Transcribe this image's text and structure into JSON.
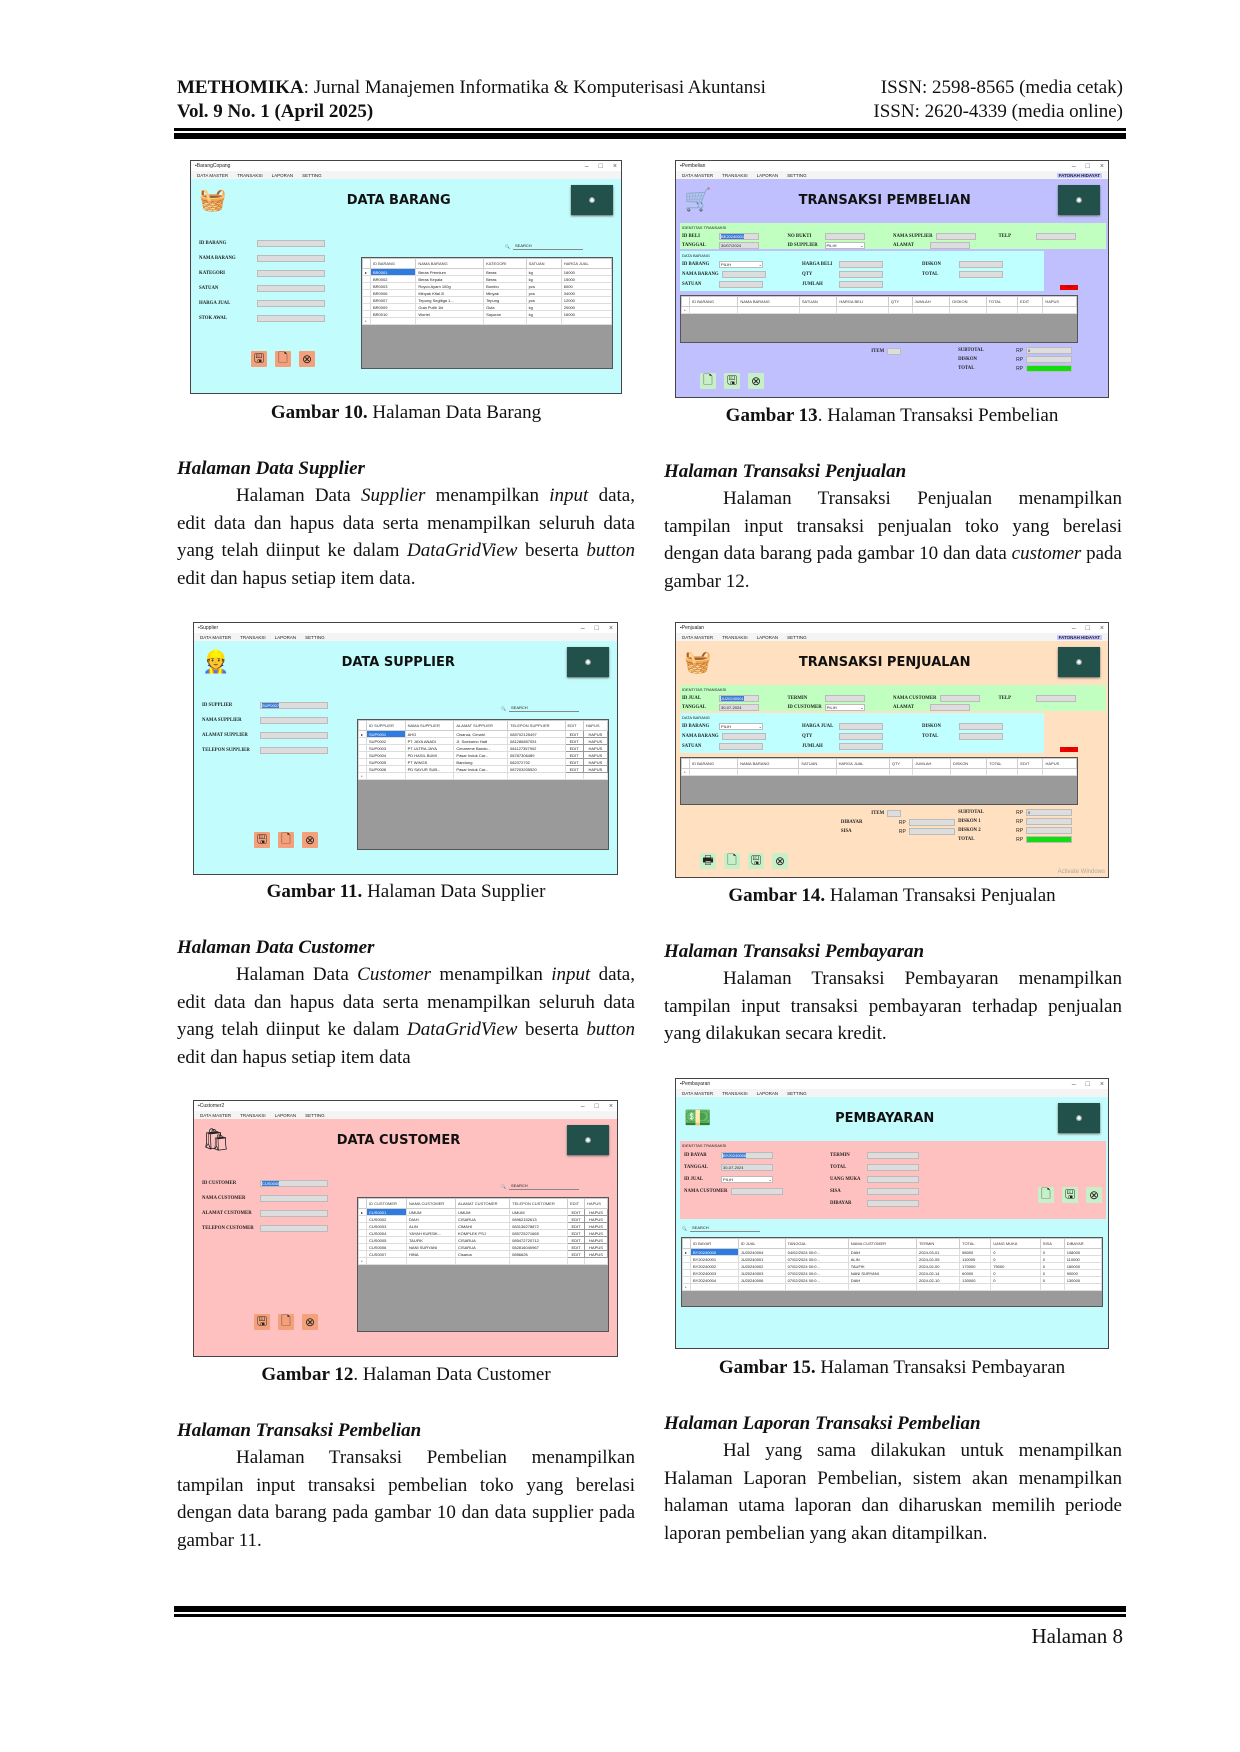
{
  "header": {
    "journal_name": "METHOMIKA",
    "journal_subtitle": ": Jurnal Manajemen Informatika & Komputerisasi Akuntansi",
    "volume": "Vol. 9 No. 1 (April 2025)",
    "issn_print": "ISSN: 2598-8565 (media cetak)",
    "issn_online": "ISSN: 2620-4339 (media online)"
  },
  "figures": [
    {
      "label": "Gambar 10.",
      "caption": " Halaman Data Barang",
      "window": {
        "title": "BarangCopang",
        "menu": [
          "DATA MASTER",
          "TRANSAKSI",
          "LAPORAN",
          "SETTING"
        ],
        "heading": "DATA BARANG",
        "bg": "#c2fcfc",
        "icon": "🧺",
        "fields": [
          {
            "label": "ID BARANG",
            "value": ""
          },
          {
            "label": "NAMA BARANG",
            "value": ""
          },
          {
            "label": "KATEGORI",
            "value": ""
          },
          {
            "label": "SATUAN",
            "value": ""
          },
          {
            "label": "HARGA JUAL",
            "value": ""
          },
          {
            "label": "STOK AWAL",
            "value": ""
          }
        ],
        "search_placeholder": "SEARCH",
        "table": {
          "columns": [
            "ID BARANG",
            "NAMA BARANG",
            "KATEGORI",
            "SATUAN",
            "HARGA JUAL"
          ],
          "rows": [
            [
              "BR0001",
              "Beras Premium",
              "Beras",
              "kg",
              "16000"
            ],
            [
              "BR0002",
              "Beras Kepala",
              "Beras",
              "kg",
              "15000"
            ],
            [
              "BR0003",
              "Royco Ayam 100g",
              "Bumbu",
              "pcs",
              "6000"
            ],
            [
              "BR0006",
              "Minyak Kital 2l",
              "Minyak",
              "pcs",
              "34000"
            ],
            [
              "BR0007",
              "Tepung Segitiga 1...",
              "Tepung",
              "pcs",
              "12000"
            ],
            [
              "BR0009",
              "Gula Putih 1kl",
              "Gula",
              "kg",
              "20000"
            ],
            [
              "BR0010",
              "Wortel",
              "Sayuran",
              "kg",
              "16000"
            ]
          ]
        },
        "button_colors": "#f4a07a"
      }
    },
    {
      "label": "Gambar 13",
      "caption": ". Halaman Transaksi Pembelian",
      "window": {
        "title": "Pembelian",
        "menu": [
          "DATA MASTER",
          "TRANSAKSI",
          "LAPORAN",
          "SETTING"
        ],
        "user": "FATONAH HIDAYAT",
        "heading": "TRANSAKSI PEMBELIAN",
        "bg": "#c0c0ff",
        "icon": "🛒",
        "group1_title": "IDENTITAS TRANSAKSI",
        "group1": [
          {
            "label": "ID BELI",
            "value": "BE20240001",
            "selected": true
          },
          {
            "label": "TANGGAL",
            "value": "30/07/2024"
          },
          {
            "label": "NO BUKTI",
            "value": ""
          },
          {
            "label": "ID SUPPLIER",
            "value": "PILIH",
            "combo": true
          },
          {
            "label": "NAMA SUPPLIER",
            "value": ""
          },
          {
            "label": "ALAMAT",
            "value": ""
          },
          {
            "label": "TELP",
            "value": ""
          }
        ],
        "group2_title": "DATA BARANG",
        "group2": [
          {
            "label": "ID BARANG",
            "value": "PILIH",
            "combo": true
          },
          {
            "label": "NAMA BARANG",
            "value": ""
          },
          {
            "label": "SATUAN",
            "value": ""
          },
          {
            "label": "HARGA BELI",
            "value": ""
          },
          {
            "label": "QTY",
            "value": ""
          },
          {
            "label": "JUMLAH",
            "value": ""
          },
          {
            "label": "DISKON",
            "value": ""
          },
          {
            "label": "TOTAL",
            "value": ""
          }
        ],
        "add_label": "ADD",
        "table": {
          "columns": [
            "ID BARANG",
            "NAMA BARANG",
            "SATUAN",
            "HARGA BELI",
            "QTY",
            "JUMLAH",
            "DISKON",
            "TOTAL",
            "EDIT",
            "HAPUS"
          ],
          "rows": []
        },
        "item_label": "ITEM",
        "totals": [
          {
            "label": "SUBTOTAL",
            "currency": "RP",
            "value": "0"
          },
          {
            "label": "DISKON",
            "currency": "RP",
            "value": ""
          },
          {
            "label": "TOTAL",
            "currency": "RP",
            "value": "",
            "green": true
          }
        ],
        "button_colors": "#c8f0c8"
      }
    },
    {
      "label": "Gambar 11.",
      "caption": " Halaman Data Supplier",
      "window": {
        "title": "Supplier",
        "menu": [
          "DATA MASTER",
          "TRANSAKSI",
          "LAPORAN",
          "SETTING"
        ],
        "heading": "DATA SUPPLIER",
        "bg": "#c2fcfc",
        "icon": "👷",
        "fields": [
          {
            "label": "ID SUPPLIER",
            "value": "SUP0007",
            "selected": true
          },
          {
            "label": "NAMA SUPPLIER",
            "value": ""
          },
          {
            "label": "ALAMAT SUPPLIER",
            "value": ""
          },
          {
            "label": "TELEPON SUPPLIER",
            "value": ""
          }
        ],
        "search_placeholder": "SEARCH",
        "table": {
          "columns": [
            "ID SUPPLIER",
            "NAMA SUPPLIER",
            "ALAMAT SUPPLIER",
            "TELEPON SUPPLIER",
            "EDIT",
            "HAPUS"
          ],
          "rows": [
            [
              "SUP0001",
              "AHO",
              "Cisarua, Cimahi",
              "085702125497",
              "EDIT",
              "HAPUS"
            ],
            [
              "SUP0002",
              "PT JAYA ANADI",
              "Jl. Soekarno Hatt",
              "081286857051",
              "EDIT",
              "HAPUS"
            ],
            [
              "SUP0003",
              "PT ULTRA JAYA",
              "Cimareme Bandu...",
              "081127357902",
              "EDIT",
              "HAPUS"
            ],
            [
              "SUP0004",
              "PD HASIL BUMI",
              "Pasar Induk Car...",
              "08787306489",
              "EDIT",
              "HAPUS"
            ],
            [
              "SUP0005",
              "PT WINGS",
              "Bandung",
              "082372702",
              "EDIT",
              "HAPUS"
            ],
            [
              "SUP0006",
              "PD SAYUR SUB...",
              "Pasar Induk Car...",
              "087203205520",
              "EDIT",
              "HAPUS"
            ]
          ]
        },
        "button_colors": "#f4a07a"
      }
    },
    {
      "label": "Gambar 14.",
      "caption": " Halaman Transaksi Penjualan",
      "window": {
        "title": "Penjualan",
        "menu": [
          "DATA MASTER",
          "TRANSAKSI",
          "LAPORAN",
          "SETTING"
        ],
        "user": "FATONAH HIDAYAT",
        "heading": "TRANSAKSI PENJUALAN",
        "bg": "#ffe0c0",
        "icon": "🧺",
        "group1_title": "IDENTITAS TRANSAKSI",
        "group1": [
          {
            "label": "ID JUAL",
            "value": "JU20240001",
            "selected": true
          },
          {
            "label": "TANGGAL",
            "value": "30-07-2024"
          },
          {
            "label": "TERMIN",
            "value": ""
          },
          {
            "label": "ID CUSTOMER",
            "value": "PILIH",
            "combo": true
          },
          {
            "label": "NAMA CUSTOMER",
            "value": ""
          },
          {
            "label": "ALAMAT",
            "value": ""
          },
          {
            "label": "TELP",
            "value": ""
          }
        ],
        "group2_title": "DATA BARANG",
        "group2": [
          {
            "label": "ID BARANG",
            "value": "PILIH",
            "combo": true
          },
          {
            "label": "NAMA BARANG",
            "value": ""
          },
          {
            "label": "SATUAN",
            "value": ""
          },
          {
            "label": "HARGA JUAL",
            "value": ""
          },
          {
            "label": "QTY",
            "value": ""
          },
          {
            "label": "JUMLAH",
            "value": ""
          },
          {
            "label": "DISKON",
            "value": ""
          },
          {
            "label": "TOTAL",
            "value": ""
          }
        ],
        "add_label": "ADD",
        "table": {
          "columns": [
            "ID BARANG",
            "NAMA BARANG",
            "SATUAN",
            "HARGA JUAL",
            "QTY",
            "JUMLAH",
            "DISKON",
            "TOTAL",
            "EDIT",
            "HAPUS"
          ],
          "rows": []
        },
        "item_label": "ITEM",
        "pay": [
          {
            "label": "DIBAYAR",
            "currency": "RP",
            "value": ""
          },
          {
            "label": "SISA",
            "currency": "RP",
            "value": ""
          }
        ],
        "totals": [
          {
            "label": "SUBTOTAL",
            "currency": "RP",
            "value": "0"
          },
          {
            "label": "DISKON 1",
            "currency": "RP",
            "value": ""
          },
          {
            "label": "DISKON 2",
            "currency": "RP",
            "value": ""
          },
          {
            "label": "TOTAL",
            "currency": "RP",
            "value": "",
            "green": true
          }
        ],
        "watermark": "Activate Windows",
        "button_colors": "#c8f0c8"
      }
    },
    {
      "label": "Gambar 12",
      "caption": ". Halaman Data Customer",
      "window": {
        "title": "Customer2",
        "menu": [
          "DATA MASTER",
          "TRANSAKSI",
          "LAPORAN",
          "SETTING"
        ],
        "heading": "DATA CUSTOMER",
        "bg": "#ffc0c0",
        "icon": "🛍",
        "fields": [
          {
            "label": "ID CUSTOMER",
            "value": "CUS0008",
            "selected": true
          },
          {
            "label": "NAMA CUSTOMER",
            "value": ""
          },
          {
            "label": "ALAMAT CUSTOMER",
            "value": ""
          },
          {
            "label": "TELEPON CUSTOMER",
            "value": ""
          }
        ],
        "search_placeholder": "SEARCH",
        "table": {
          "columns": [
            "ID CUSTOMER",
            "NAMA CUSTOMER",
            "ALAMAT CUSTOMER",
            "TELEPON CUSTOMER",
            "EDIT",
            "HAPUS"
          ],
          "rows": [
            [
              "CUS0001",
              "UMUM",
              "UMUM",
              "UMUM",
              "EDIT",
              "HAPUS"
            ],
            [
              "CUS0002",
              "DIAH",
              "CISARUA",
              "08962152613",
              "EDIT",
              "HAPUS"
            ],
            [
              "CUS0003",
              "ALIN",
              "CIMAHI",
              "083136278872",
              "EDIT",
              "HAPUS"
            ],
            [
              "CUS0004",
              "YAYAH KURSIK...",
              "KOMPLEK PSJ",
              "085725271665",
              "EDIT",
              "HAPUS"
            ],
            [
              "CUS0005",
              "TAUFIK",
              "CISARUA",
              "085472720712",
              "EDIT",
              "HAPUS"
            ],
            [
              "CUS0006",
              "NANI SURYANI",
              "CISARUA",
              "082816040967",
              "EDIT",
              "HAPUS"
            ],
            [
              "CUS0007",
              "HINA",
              "Cisarua",
              "0856626",
              "EDIT",
              "HAPUS"
            ]
          ]
        },
        "button_colors": "#f4a07a"
      }
    },
    {
      "label": "Gambar 15.",
      "caption": " Halaman Transaksi Pembayaran",
      "window": {
        "title": "Pembayaran",
        "menu": [
          "DATA MASTER",
          "TRANSAKSI",
          "LAPORAN",
          "SETTING"
        ],
        "heading": "PEMBAYARAN",
        "bg": "#c2fcfc",
        "icon": "💵",
        "group1_title": "IDENTITAS TRANSAKSI",
        "group1": [
          {
            "label": "ID BAYAR",
            "value": "BY20240008",
            "selected": true
          },
          {
            "label": "TANGGAL",
            "value": "30-07-2024"
          },
          {
            "label": "ID JUAL",
            "value": "PILIH",
            "combo": true
          },
          {
            "label": "NAMA CUSTOMER",
            "value": ""
          }
        ],
        "group1b": [
          {
            "label": "TERMIN",
            "value": ""
          },
          {
            "label": "TOTAL",
            "value": ""
          },
          {
            "label": "UANG MUKA",
            "value": ""
          },
          {
            "label": "SISA",
            "value": ""
          },
          {
            "label": "DIBAYAR",
            "value": ""
          }
        ],
        "search_placeholder": "SEARCH",
        "table": {
          "columns": [
            "ID BAYAR",
            "ID JUAL",
            "TANGGAL",
            "NAMA CUSTOMER",
            "TERMIN",
            "TOTAL",
            "UANG MUKA",
            "SISA",
            "DIBAYAR"
          ],
          "rows": [
            [
              "BY20240000",
              "JU20240004",
              "04/02/2024 00:0...",
              "DIAH",
              "2024-03-01",
              "58000",
              "0",
              "0",
              "108000"
            ],
            [
              "BY20240001",
              "JU20240001",
              "07/02/2024 00:0...",
              "ALIN",
              "2024-02-05",
              "110000",
              "0",
              "0",
              "110000"
            ],
            [
              "BY20240002",
              "JU20240002",
              "07/02/2024 00:0...",
              "TAUFIK",
              "2024-02-00",
              "170000",
              "75000",
              "0",
              "160000"
            ],
            [
              "BY20240003",
              "JU20240003",
              "07/02/2024 00:0...",
              "NANI SURYANI",
              "2024-02-14",
              "60000",
              "0",
              "0",
              "90000"
            ],
            [
              "BY20240004",
              "JU20240006",
              "07/02/2024 00:0...",
              "DIAH",
              "2024-02-10",
              "130000",
              "0",
              "0",
              "130000"
            ]
          ]
        },
        "button_colors": "#c8f0c8"
      }
    }
  ],
  "sections": [
    {
      "heading": "Halaman Data Supplier",
      "segments": [
        {
          "t": "Halaman Data "
        },
        {
          "t": "Supplier",
          "i": true
        },
        {
          "t": " menampilkan "
        },
        {
          "t": "input",
          "i": true
        },
        {
          "t": " data, edit data dan hapus data serta menampilkan seluruh data yang telah diinput ke dalam "
        },
        {
          "t": "DataGridView",
          "i": true
        },
        {
          "t": " beserta "
        },
        {
          "t": "button",
          "i": true
        },
        {
          "t": " edit dan hapus setiap item data."
        }
      ]
    },
    {
      "heading": "Halaman Transaksi Penjualan",
      "segments": [
        {
          "t": "Halaman Transaksi Penjualan menampilkan tampilan input transaksi penjualan toko yang berelasi dengan data barang pada gambar 10 dan data "
        },
        {
          "t": "customer",
          "i": true
        },
        {
          "t": " pada gambar 12."
        }
      ]
    },
    {
      "heading": "Halaman Data Customer",
      "segments": [
        {
          "t": "Halaman Data "
        },
        {
          "t": "Customer",
          "i": true
        },
        {
          "t": " menampilkan "
        },
        {
          "t": "input",
          "i": true
        },
        {
          "t": " data, edit data dan hapus data serta menampilkan seluruh data yang telah diinput ke dalam "
        },
        {
          "t": "DataGridView",
          "i": true
        },
        {
          "t": " beserta "
        },
        {
          "t": "button",
          "i": true
        },
        {
          "t": " edit dan hapus setiap item data"
        }
      ]
    },
    {
      "heading": "Halaman Transaksi Pembayaran",
      "segments": [
        {
          "t": "Halaman Transaksi Pembayaran menampilkan tampilan input transaksi pembayaran terhadap penjualan yang dilakukan secara kredit."
        }
      ]
    },
    {
      "heading": "Halaman Transaksi Pembelian",
      "segments": [
        {
          "t": "Halaman Transaksi Pembelian menampilkan tampilan input transaksi pembelian toko yang berelasi dengan data barang pada gambar 10 dan data supplier pada gambar 11."
        }
      ]
    },
    {
      "heading": "Halaman Laporan Transaksi Pembelian",
      "segments": [
        {
          "t": "Hal yang sama dilakukan untuk menampilkan Halaman Laporan Pembelian, sistem akan menampilkan halaman utama laporan dan diharuskan memilih periode laporan pembelian yang akan ditampilkan."
        }
      ]
    }
  ],
  "footer": {
    "page": "Halaman 8"
  }
}
